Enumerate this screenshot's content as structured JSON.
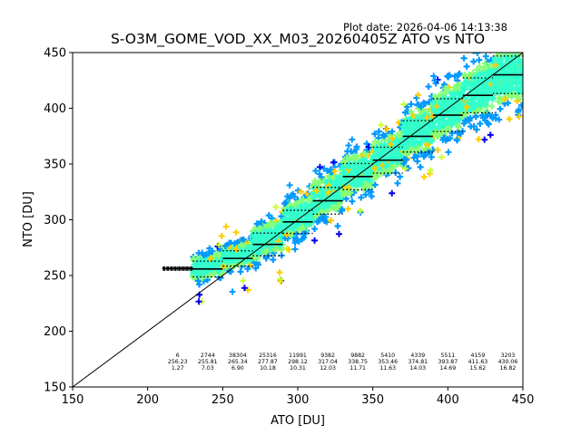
{
  "header": {
    "plot_date": "Plot date: 2026-04-06 14:13:38"
  },
  "chart_data": {
    "type": "scatter",
    "title": "S-O3M_GOME_VOD_XX_M03_20260405Z ATO vs NTO",
    "xlabel": "ATO [DU]",
    "ylabel": "NTO [DU]",
    "xlim": [
      150,
      450
    ],
    "ylim": [
      150,
      450
    ],
    "xticks": [
      150,
      200,
      250,
      300,
      350,
      400,
      450
    ],
    "yticks": [
      150,
      200,
      250,
      300,
      350,
      400,
      450
    ],
    "grid": false,
    "legend": "none",
    "reference_line": {
      "from": [
        150,
        150
      ],
      "to": [
        450,
        450
      ],
      "color": "#000000"
    },
    "colors": {
      "dense_core": "#33ffcc",
      "mid": "#88ff77",
      "outer_blue": "#0099ff",
      "outlier_blue": "#0000ee",
      "outlier_yellow": "#ffcc00",
      "outlier_lime": "#ccff33",
      "low_end_marks": "#000000"
    },
    "bins": [
      {
        "x_range": [
          210,
          230
        ],
        "count": "6",
        "mean": "256.23",
        "std": "1.27",
        "mean_value": 256.23,
        "std_value": 1.27
      },
      {
        "x_range": [
          230,
          250
        ],
        "count": "2744",
        "mean": "255.81",
        "std": "7.03",
        "mean_value": 255.81,
        "std_value": 7.03
      },
      {
        "x_range": [
          250,
          270
        ],
        "count": "38304",
        "mean": "265.34",
        "std": "6.90",
        "mean_value": 265.34,
        "std_value": 6.9
      },
      {
        "x_range": [
          270,
          290
        ],
        "count": "25316",
        "mean": "277.87",
        "std": "10.18",
        "mean_value": 277.87,
        "std_value": 10.18
      },
      {
        "x_range": [
          290,
          310
        ],
        "count": "11991",
        "mean": "298.12",
        "std": "10.31",
        "mean_value": 298.12,
        "std_value": 10.31
      },
      {
        "x_range": [
          310,
          330
        ],
        "count": "9382",
        "mean": "317.04",
        "std": "12.03",
        "mean_value": 317.04,
        "std_value": 12.03
      },
      {
        "x_range": [
          330,
          350
        ],
        "count": "9882",
        "mean": "338.75",
        "std": "11.71",
        "mean_value": 338.75,
        "std_value": 11.71
      },
      {
        "x_range": [
          350,
          370
        ],
        "count": "5410",
        "mean": "353.46",
        "std": "11.63",
        "mean_value": 353.46,
        "std_value": 11.63
      },
      {
        "x_range": [
          370,
          390
        ],
        "count": "4339",
        "mean": "374.81",
        "std": "14.03",
        "mean_value": 374.81,
        "std_value": 14.03
      },
      {
        "x_range": [
          390,
          410
        ],
        "count": "5511",
        "mean": "393.87",
        "std": "14.69",
        "mean_value": 393.87,
        "std_value": 14.69
      },
      {
        "x_range": [
          410,
          430
        ],
        "count": "4159",
        "mean": "411.63",
        "std": "15.62",
        "mean_value": 411.63,
        "std_value": 15.62
      },
      {
        "x_range": [
          430,
          450
        ],
        "count": "3203",
        "mean": "430.06",
        "std": "16.82",
        "mean_value": 430.06,
        "std_value": 16.82
      }
    ]
  }
}
